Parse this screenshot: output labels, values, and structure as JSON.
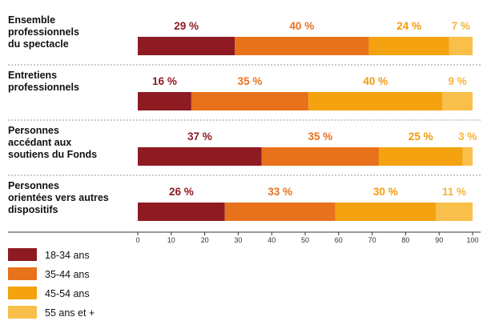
{
  "chart_data": {
    "type": "bar",
    "stacked": true,
    "orientation": "horizontal",
    "title": "",
    "xlabel": "",
    "ylabel": "",
    "xlim": [
      0,
      100
    ],
    "x_ticks": [
      0,
      10,
      20,
      30,
      40,
      50,
      60,
      70,
      80,
      90,
      100
    ],
    "grid": false,
    "legend_position": "bottom-left",
    "value_suffix": " %",
    "categories": [
      [
        "Ensemble",
        "professionnels",
        "du spectacle"
      ],
      [
        "Entretiens",
        "professionnels"
      ],
      [
        "Personnes",
        "accédant aux",
        "soutiens du Fonds"
      ],
      [
        "Personnes",
        "orientées vers autres",
        "dispositifs"
      ]
    ],
    "series": [
      {
        "name": "18-34 ans",
        "color": "#8e1a22",
        "values": [
          29,
          16,
          37,
          26
        ]
      },
      {
        "name": "35-44 ans",
        "color": "#e8711c",
        "values": [
          40,
          35,
          35,
          33
        ]
      },
      {
        "name": "45-54 ans",
        "color": "#f4a20f",
        "values": [
          24,
          40,
          25,
          30
        ]
      },
      {
        "name": "55 ans et +",
        "color": "#f8bf4a",
        "values": [
          7,
          9,
          3,
          11
        ]
      }
    ],
    "label_colors": [
      "#8e1a22",
      "#e8711c",
      "#f29a0c",
      "#f4b43a"
    ]
  }
}
